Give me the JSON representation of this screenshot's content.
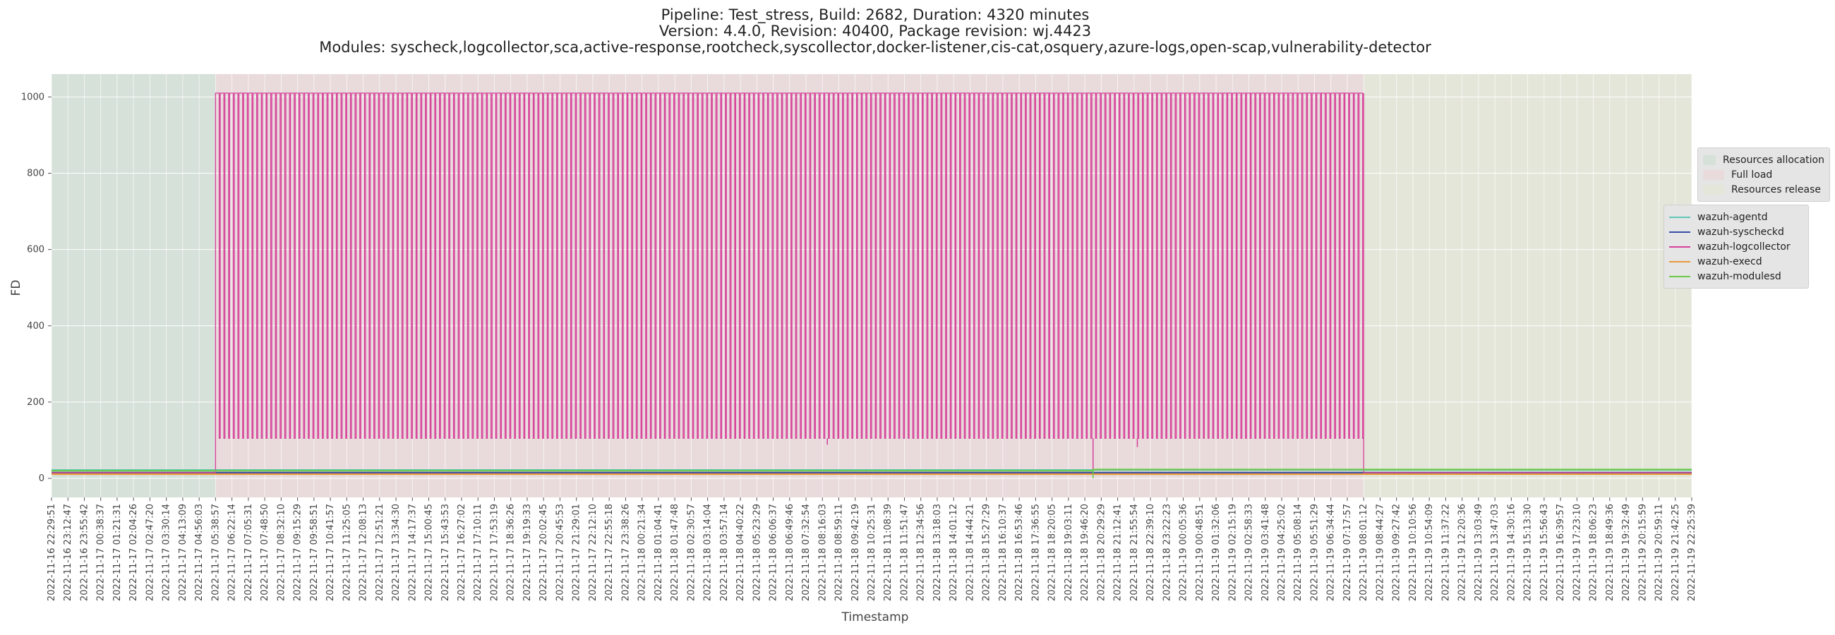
{
  "title_lines": [
    "Pipeline: Test_stress, Build: 2682, Duration: 4320 minutes",
    "Version: 4.4.0, Revision: 40400, Package revision: wj.4423",
    "Modules: syscheck,logcollector,sca,active-response,rootcheck,syscollector,docker-listener,cis-cat,osquery,azure-logs,open-scap,vulnerability-detector"
  ],
  "chart_data": {
    "type": "line",
    "xlabel": "Timestamp",
    "ylabel": "FD",
    "ylim": [
      -50,
      1060
    ],
    "yticks": [
      0,
      200,
      400,
      600,
      800,
      1000
    ],
    "grid": true,
    "x_ticks": [
      "2022-11-16 22:29:51",
      "2022-11-16 23:12:47",
      "2022-11-16 23:55:42",
      "2022-11-17 00:38:37",
      "2022-11-17 01:21:31",
      "2022-11-17 02:04:26",
      "2022-11-17 02:47:20",
      "2022-11-17 03:30:14",
      "2022-11-17 04:13:09",
      "2022-11-17 04:56:03",
      "2022-11-17 05:38:57",
      "2022-11-17 06:22:14",
      "2022-11-17 07:05:31",
      "2022-11-17 07:48:50",
      "2022-11-17 08:32:10",
      "2022-11-17 09:15:29",
      "2022-11-17 09:58:51",
      "2022-11-17 10:41:57",
      "2022-11-17 11:25:05",
      "2022-11-17 12:08:13",
      "2022-11-17 12:51:21",
      "2022-11-17 13:34:30",
      "2022-11-17 14:17:37",
      "2022-11-17 15:00:45",
      "2022-11-17 15:43:53",
      "2022-11-17 16:27:02",
      "2022-11-17 17:10:11",
      "2022-11-17 17:53:19",
      "2022-11-17 18:36:26",
      "2022-11-17 19:19:33",
      "2022-11-17 20:02:45",
      "2022-11-17 20:45:53",
      "2022-11-17 21:29:01",
      "2022-11-17 22:12:10",
      "2022-11-17 22:55:18",
      "2022-11-17 23:38:26",
      "2022-11-18 00:21:34",
      "2022-11-18 01:04:41",
      "2022-11-18 01:47:48",
      "2022-11-18 02:30:57",
      "2022-11-18 03:14:04",
      "2022-11-18 03:57:14",
      "2022-11-18 04:40:22",
      "2022-11-18 05:23:29",
      "2022-11-18 06:06:37",
      "2022-11-18 06:49:46",
      "2022-11-18 07:32:54",
      "2022-11-18 08:16:03",
      "2022-11-18 08:59:11",
      "2022-11-18 09:42:19",
      "2022-11-18 10:25:31",
      "2022-11-18 11:08:39",
      "2022-11-18 11:51:47",
      "2022-11-18 12:34:56",
      "2022-11-18 13:18:03",
      "2022-11-18 14:01:12",
      "2022-11-18 14:44:21",
      "2022-11-18 15:27:29",
      "2022-11-18 16:10:37",
      "2022-11-18 16:53:46",
      "2022-11-18 17:36:55",
      "2022-11-18 18:20:05",
      "2022-11-18 19:03:11",
      "2022-11-18 19:46:20",
      "2022-11-18 20:29:29",
      "2022-11-18 21:12:41",
      "2022-11-18 21:55:54",
      "2022-11-18 22:39:10",
      "2022-11-18 23:22:23",
      "2022-11-19 00:05:36",
      "2022-11-19 00:48:51",
      "2022-11-19 01:32:06",
      "2022-11-19 02:15:19",
      "2022-11-19 02:58:33",
      "2022-11-19 03:41:48",
      "2022-11-19 04:25:02",
      "2022-11-19 05:08:14",
      "2022-11-19 05:51:29",
      "2022-11-19 06:34:44",
      "2022-11-19 07:17:57",
      "2022-11-19 08:01:12",
      "2022-11-19 08:44:27",
      "2022-11-19 09:27:42",
      "2022-11-19 10:10:56",
      "2022-11-19 10:54:09",
      "2022-11-19 11:37:22",
      "2022-11-19 12:20:36",
      "2022-11-19 13:03:49",
      "2022-11-19 13:47:03",
      "2022-11-19 14:30:16",
      "2022-11-19 15:13:30",
      "2022-11-19 15:56:43",
      "2022-11-19 16:39:57",
      "2022-11-19 17:23:10",
      "2022-11-19 18:06:23",
      "2022-11-19 18:49:36",
      "2022-11-19 19:32:49",
      "2022-11-19 20:15:59",
      "2022-11-19 20:59:11",
      "2022-11-19 21:42:25",
      "2022-11-19 22:25:39"
    ],
    "phases": [
      {
        "name": "Resources allocation",
        "color": "#d6e1d9",
        "start_tick": 0,
        "end_tick": 10
      },
      {
        "name": "Full load",
        "color": "#e9dbdc",
        "start_tick": 10,
        "end_tick": 80
      },
      {
        "name": "Resources release",
        "color": "#e5e6da",
        "start_tick": 80,
        "end_tick": 100
      }
    ],
    "series": [
      {
        "name": "wazuh-agentd",
        "color": "#5ec8b8",
        "segments": [
          {
            "from_tick": 0,
            "to_tick": 100,
            "value": 22
          }
        ]
      },
      {
        "name": "wazuh-syscheckd",
        "color": "#3a4ea6",
        "segments": [
          {
            "from_tick": 0,
            "to_tick": 100,
            "value": 15
          }
        ]
      },
      {
        "name": "wazuh-logcollector",
        "color": "#d6409a",
        "baseline": 15,
        "oscillation": {
          "from_tick": 10,
          "to_tick": 80,
          "cycles": 245,
          "high": 1010,
          "low": 105
        },
        "dips": [
          {
            "tick": 47.3,
            "value": 88
          },
          {
            "tick": 63.5,
            "value": 0
          },
          {
            "tick": 66.2,
            "value": 82
          }
        ]
      },
      {
        "name": "wazuh-execd",
        "color": "#e89a3c",
        "segments": [
          {
            "from_tick": 0,
            "to_tick": 100,
            "value": 11
          }
        ]
      },
      {
        "name": "wazuh-modulesd",
        "color": "#6cc84a",
        "segments": [
          {
            "from_tick": 0,
            "to_tick": 63.5,
            "value": 20
          },
          {
            "from_tick": 63.5,
            "to_tick": 100,
            "value": 23
          }
        ],
        "dips": [
          {
            "tick": 63.5,
            "value": 0
          }
        ]
      }
    ],
    "legend_phases_position": "right",
    "legend_series_position": "right"
  }
}
